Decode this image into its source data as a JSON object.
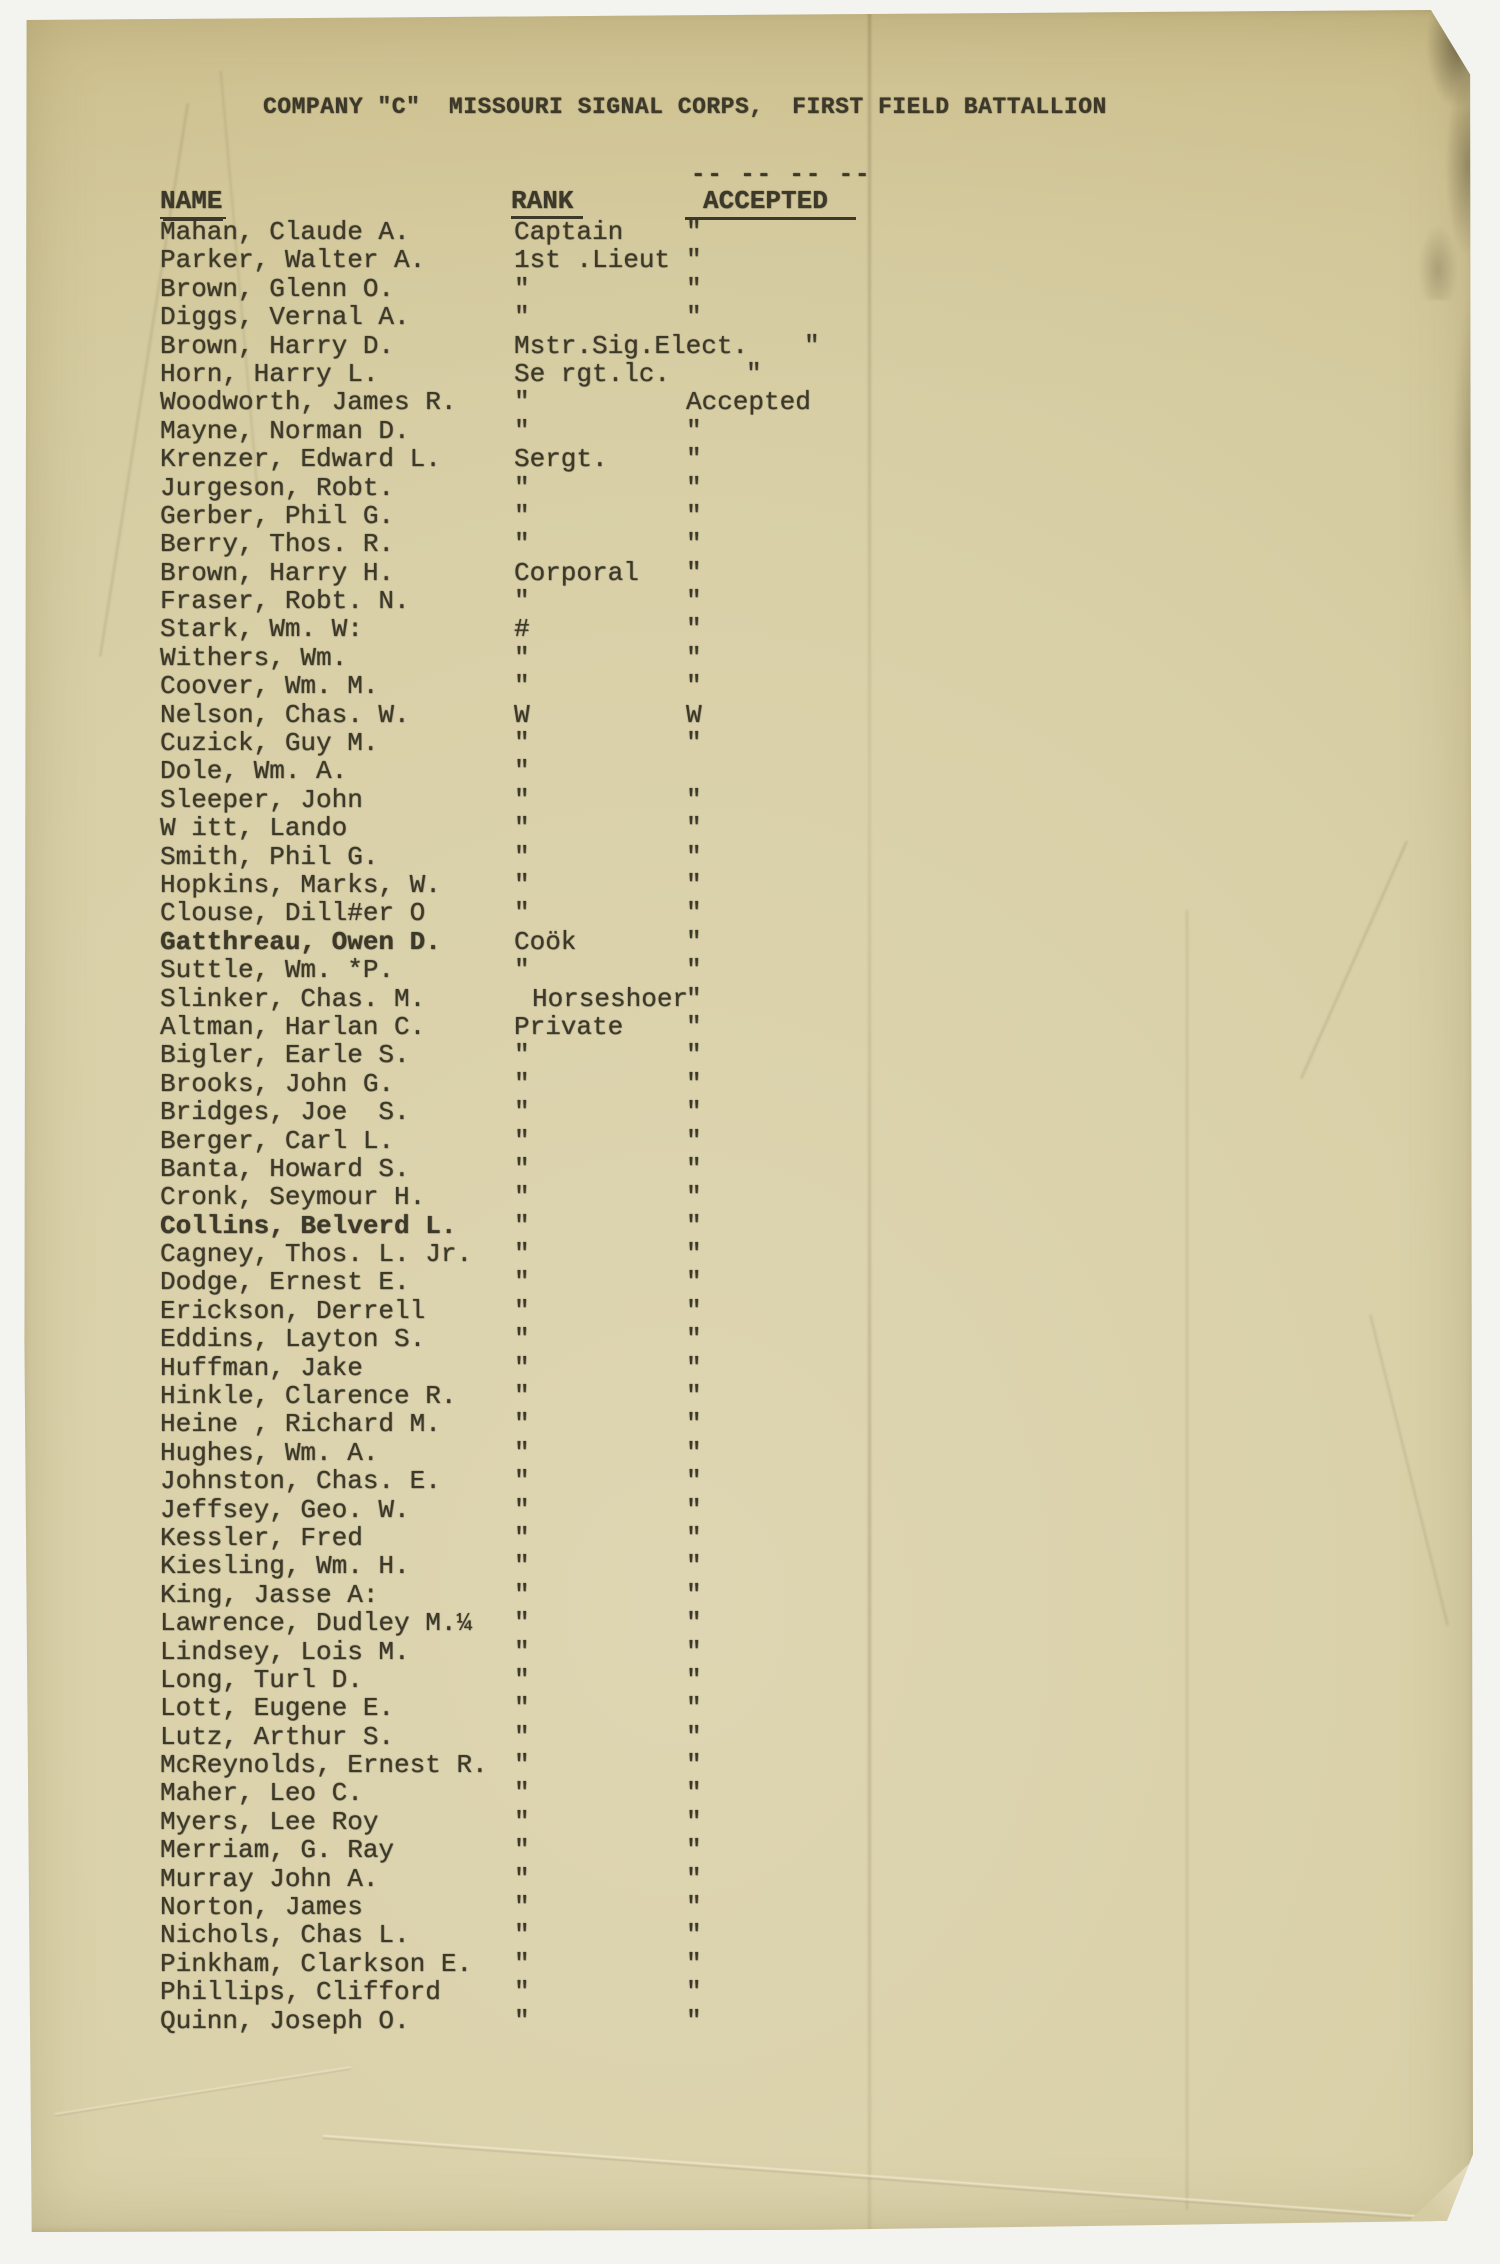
{
  "document": {
    "title": "COMPANY \"C\"  MISSOURI SIGNAL CORPS,  FIRST FIELD BATTALLION",
    "title_underline": "-- -- -- --",
    "columns": {
      "name": "NAME",
      "rank": "RANK",
      "accepted": "ACCEPTED"
    },
    "roster": [
      {
        "name": "Mahan, Claude A.",
        "rank": "Captain",
        "accepted": "\""
      },
      {
        "name": "Parker, Walter A.",
        "rank": "1st .Lieut",
        "accepted": "\""
      },
      {
        "name": "Brown, Glenn O.",
        "rank": "\"",
        "accepted": "\""
      },
      {
        "name": "Diggs, Vernal A.",
        "rank": "\"",
        "accepted": "\""
      },
      {
        "name": "Brown, Harry D.",
        "rank": "Mstr.Sig.Elect.",
        "accepted": "\"",
        "acc_dx": 118
      },
      {
        "name": "Horn, Harry L.",
        "rank": "Se rgt.lc.",
        "accepted": "\"",
        "acc_dx": 60
      },
      {
        "name": "Woodworth, James R.",
        "rank": "\"",
        "accepted": "Accepted"
      },
      {
        "name": "Mayne, Norman D.",
        "rank": "\"",
        "accepted": "\""
      },
      {
        "name": "Krenzer, Edward L.",
        "rank": "Sergt.",
        "accepted": "\""
      },
      {
        "name": "Jurgeson, Robt.",
        "rank": "\"",
        "accepted": "\""
      },
      {
        "name": "Gerber, Phil G.",
        "rank": "\"",
        "accepted": "\""
      },
      {
        "name": "Berry, Thos. R.",
        "rank": "\"",
        "accepted": "\""
      },
      {
        "name": "Brown, Harry H.",
        "rank": "Corporal",
        "accepted": "\""
      },
      {
        "name": "Fraser, Robt. N.",
        "rank": "\"",
        "accepted": "\""
      },
      {
        "name": "Stark, Wm. W:",
        "rank": "#",
        "accepted": "\""
      },
      {
        "name": "Withers, Wm.",
        "rank": "\"",
        "accepted": "\""
      },
      {
        "name": "Coover, Wm. M.",
        "rank": "\"",
        "accepted": "\""
      },
      {
        "name": "Nelson, Chas. W.",
        "rank": "W",
        "accepted": "W"
      },
      {
        "name": "Cuzick, Guy M.",
        "rank": "\"",
        "accepted": "\""
      },
      {
        "name": "Dole, Wm. A.",
        "rank": "\"",
        "accepted": ""
      },
      {
        "name": "Sleeper, John",
        "rank": "\"",
        "accepted": "\""
      },
      {
        "name": "W itt, Lando",
        "rank": "\"",
        "accepted": "\""
      },
      {
        "name": "Smith, Phil G.",
        "rank": "\"",
        "accepted": "\""
      },
      {
        "name": "Hopkins, Marks, W.",
        "rank": "\"",
        "accepted": "\""
      },
      {
        "name": "Clouse, Dill#er O",
        "rank": "\"",
        "accepted": "\""
      },
      {
        "name": "Gatthreau, Owen D.",
        "rank": "Coök",
        "accepted": "\"",
        "bold": true
      },
      {
        "name": "Suttle, Wm. *P.",
        "rank": "\"",
        "accepted": "\""
      },
      {
        "name": "Slinker, Chas. M.",
        "rank": "Horseshoer",
        "accepted": "\"",
        "rank_dx": 18
      },
      {
        "name": "Altman, Harlan C.",
        "rank": "Private",
        "accepted": "\""
      },
      {
        "name": "Bigler, Earle S.",
        "rank": "\"",
        "accepted": "\""
      },
      {
        "name": "Brooks, John G.",
        "rank": "\"",
        "accepted": "\""
      },
      {
        "name": "Bridges, Joe  S.",
        "rank": "\"",
        "accepted": "\""
      },
      {
        "name": "Berger, Carl L.",
        "rank": "\"",
        "accepted": "\""
      },
      {
        "name": "Banta, Howard S.",
        "rank": "\"",
        "accepted": "\""
      },
      {
        "name": "Cronk, Seymour H.",
        "rank": "\"",
        "accepted": "\""
      },
      {
        "name": "Collins, Belverd L.",
        "rank": "\"",
        "accepted": "\"",
        "bold": true
      },
      {
        "name": "Cagney, Thos. L. Jr.",
        "rank": "\"",
        "accepted": "\""
      },
      {
        "name": "Dodge, Ernest E.",
        "rank": "\"",
        "accepted": "\""
      },
      {
        "name": "Erickson, Derrell",
        "rank": "\"",
        "accepted": "\""
      },
      {
        "name": "Eddins, Layton S.",
        "rank": "\"",
        "accepted": "\""
      },
      {
        "name": "Huffman, Jake",
        "rank": "\"",
        "accepted": "\""
      },
      {
        "name": "Hinkle, Clarence R.",
        "rank": "\"",
        "accepted": "\""
      },
      {
        "name": "Heine , Richard M.",
        "rank": "\"",
        "accepted": "\""
      },
      {
        "name": "Hughes, Wm. A.",
        "rank": "\"",
        "accepted": "\""
      },
      {
        "name": "Johnston, Chas. E.",
        "rank": "\"",
        "accepted": "\""
      },
      {
        "name": "Jeffsey, Geo. W.",
        "rank": "\"",
        "accepted": "\""
      },
      {
        "name": "Kessler, Fred",
        "rank": "\"",
        "accepted": "\""
      },
      {
        "name": "Kiesling, Wm. H.",
        "rank": "\"",
        "accepted": "\""
      },
      {
        "name": "King, Jasse A:",
        "rank": "\"",
        "accepted": "\""
      },
      {
        "name": "Lawrence, Dudley M.¼",
        "rank": "\"",
        "accepted": "\""
      },
      {
        "name": "Lindsey, Lois M.",
        "rank": "\"",
        "accepted": "\""
      },
      {
        "name": "Long, Turl D.",
        "rank": "\"",
        "accepted": "\""
      },
      {
        "name": "Lott, Eugene E.",
        "rank": "\"",
        "accepted": "\""
      },
      {
        "name": "Lutz, Arthur S.",
        "rank": "\"",
        "accepted": "\""
      },
      {
        "name": "McReynolds, Ernest R.",
        "rank": "\"",
        "accepted": "\""
      },
      {
        "name": "Maher, Leo C.",
        "rank": "\"",
        "accepted": "\""
      },
      {
        "name": "Myers, Lee Roy",
        "rank": "\"",
        "accepted": "\""
      },
      {
        "name": "Merriam, G. Ray",
        "rank": "\"",
        "accepted": "\""
      },
      {
        "name": "Murray John A.",
        "rank": "\"",
        "accepted": "\""
      },
      {
        "name": "Norton, James",
        "rank": "\"",
        "accepted": "\""
      },
      {
        "name": "Nichols, Chas L.",
        "rank": "\"",
        "accepted": "\""
      },
      {
        "name": "Pinkham, Clarkson E.",
        "rank": "\"",
        "accepted": "\""
      },
      {
        "name": "Phillips, Clifford",
        "rank": "\"",
        "accepted": "\""
      },
      {
        "name": "Quinn, Joseph O.",
        "rank": "\"",
        "accepted": "\""
      }
    ]
  },
  "colors": {
    "paper": "#d9d0a8",
    "paper_edge": "#c9bd8c",
    "ink": "#3c382a",
    "scanner_background": "#f3f3f0",
    "stain": "#37301e"
  }
}
